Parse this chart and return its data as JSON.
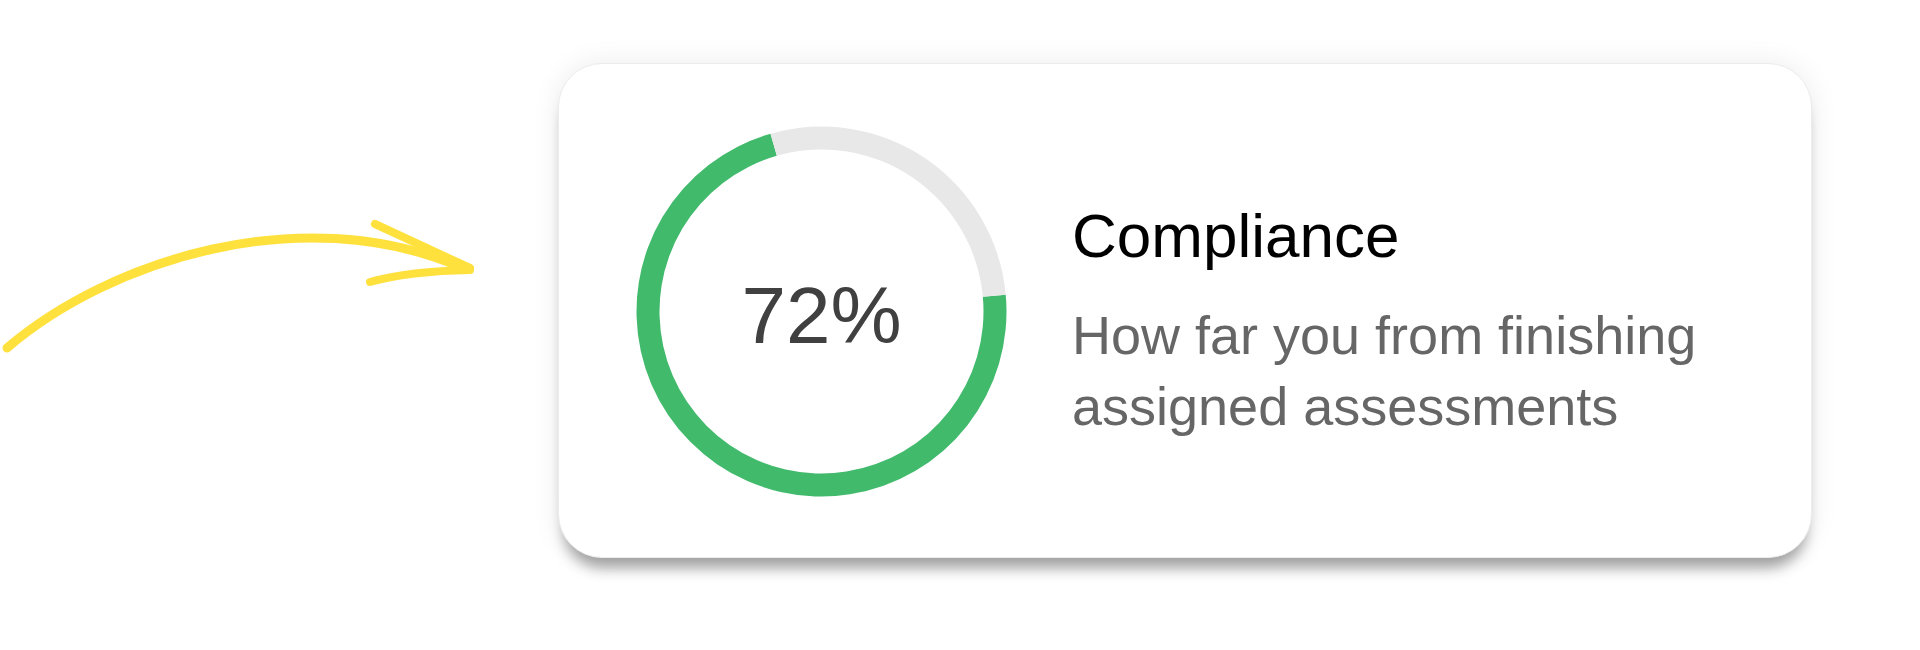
{
  "chart_data": {
    "type": "donut",
    "title": "Compliance",
    "subtitle": "How far you from finishing assigned assessments",
    "categories": [
      null,
      null
    ],
    "values": [
      72,
      28
    ],
    "colors": [
      "#41ba6c",
      "#e8e8e8"
    ],
    "value_labels": [
      "72%",
      null
    ]
  }
}
